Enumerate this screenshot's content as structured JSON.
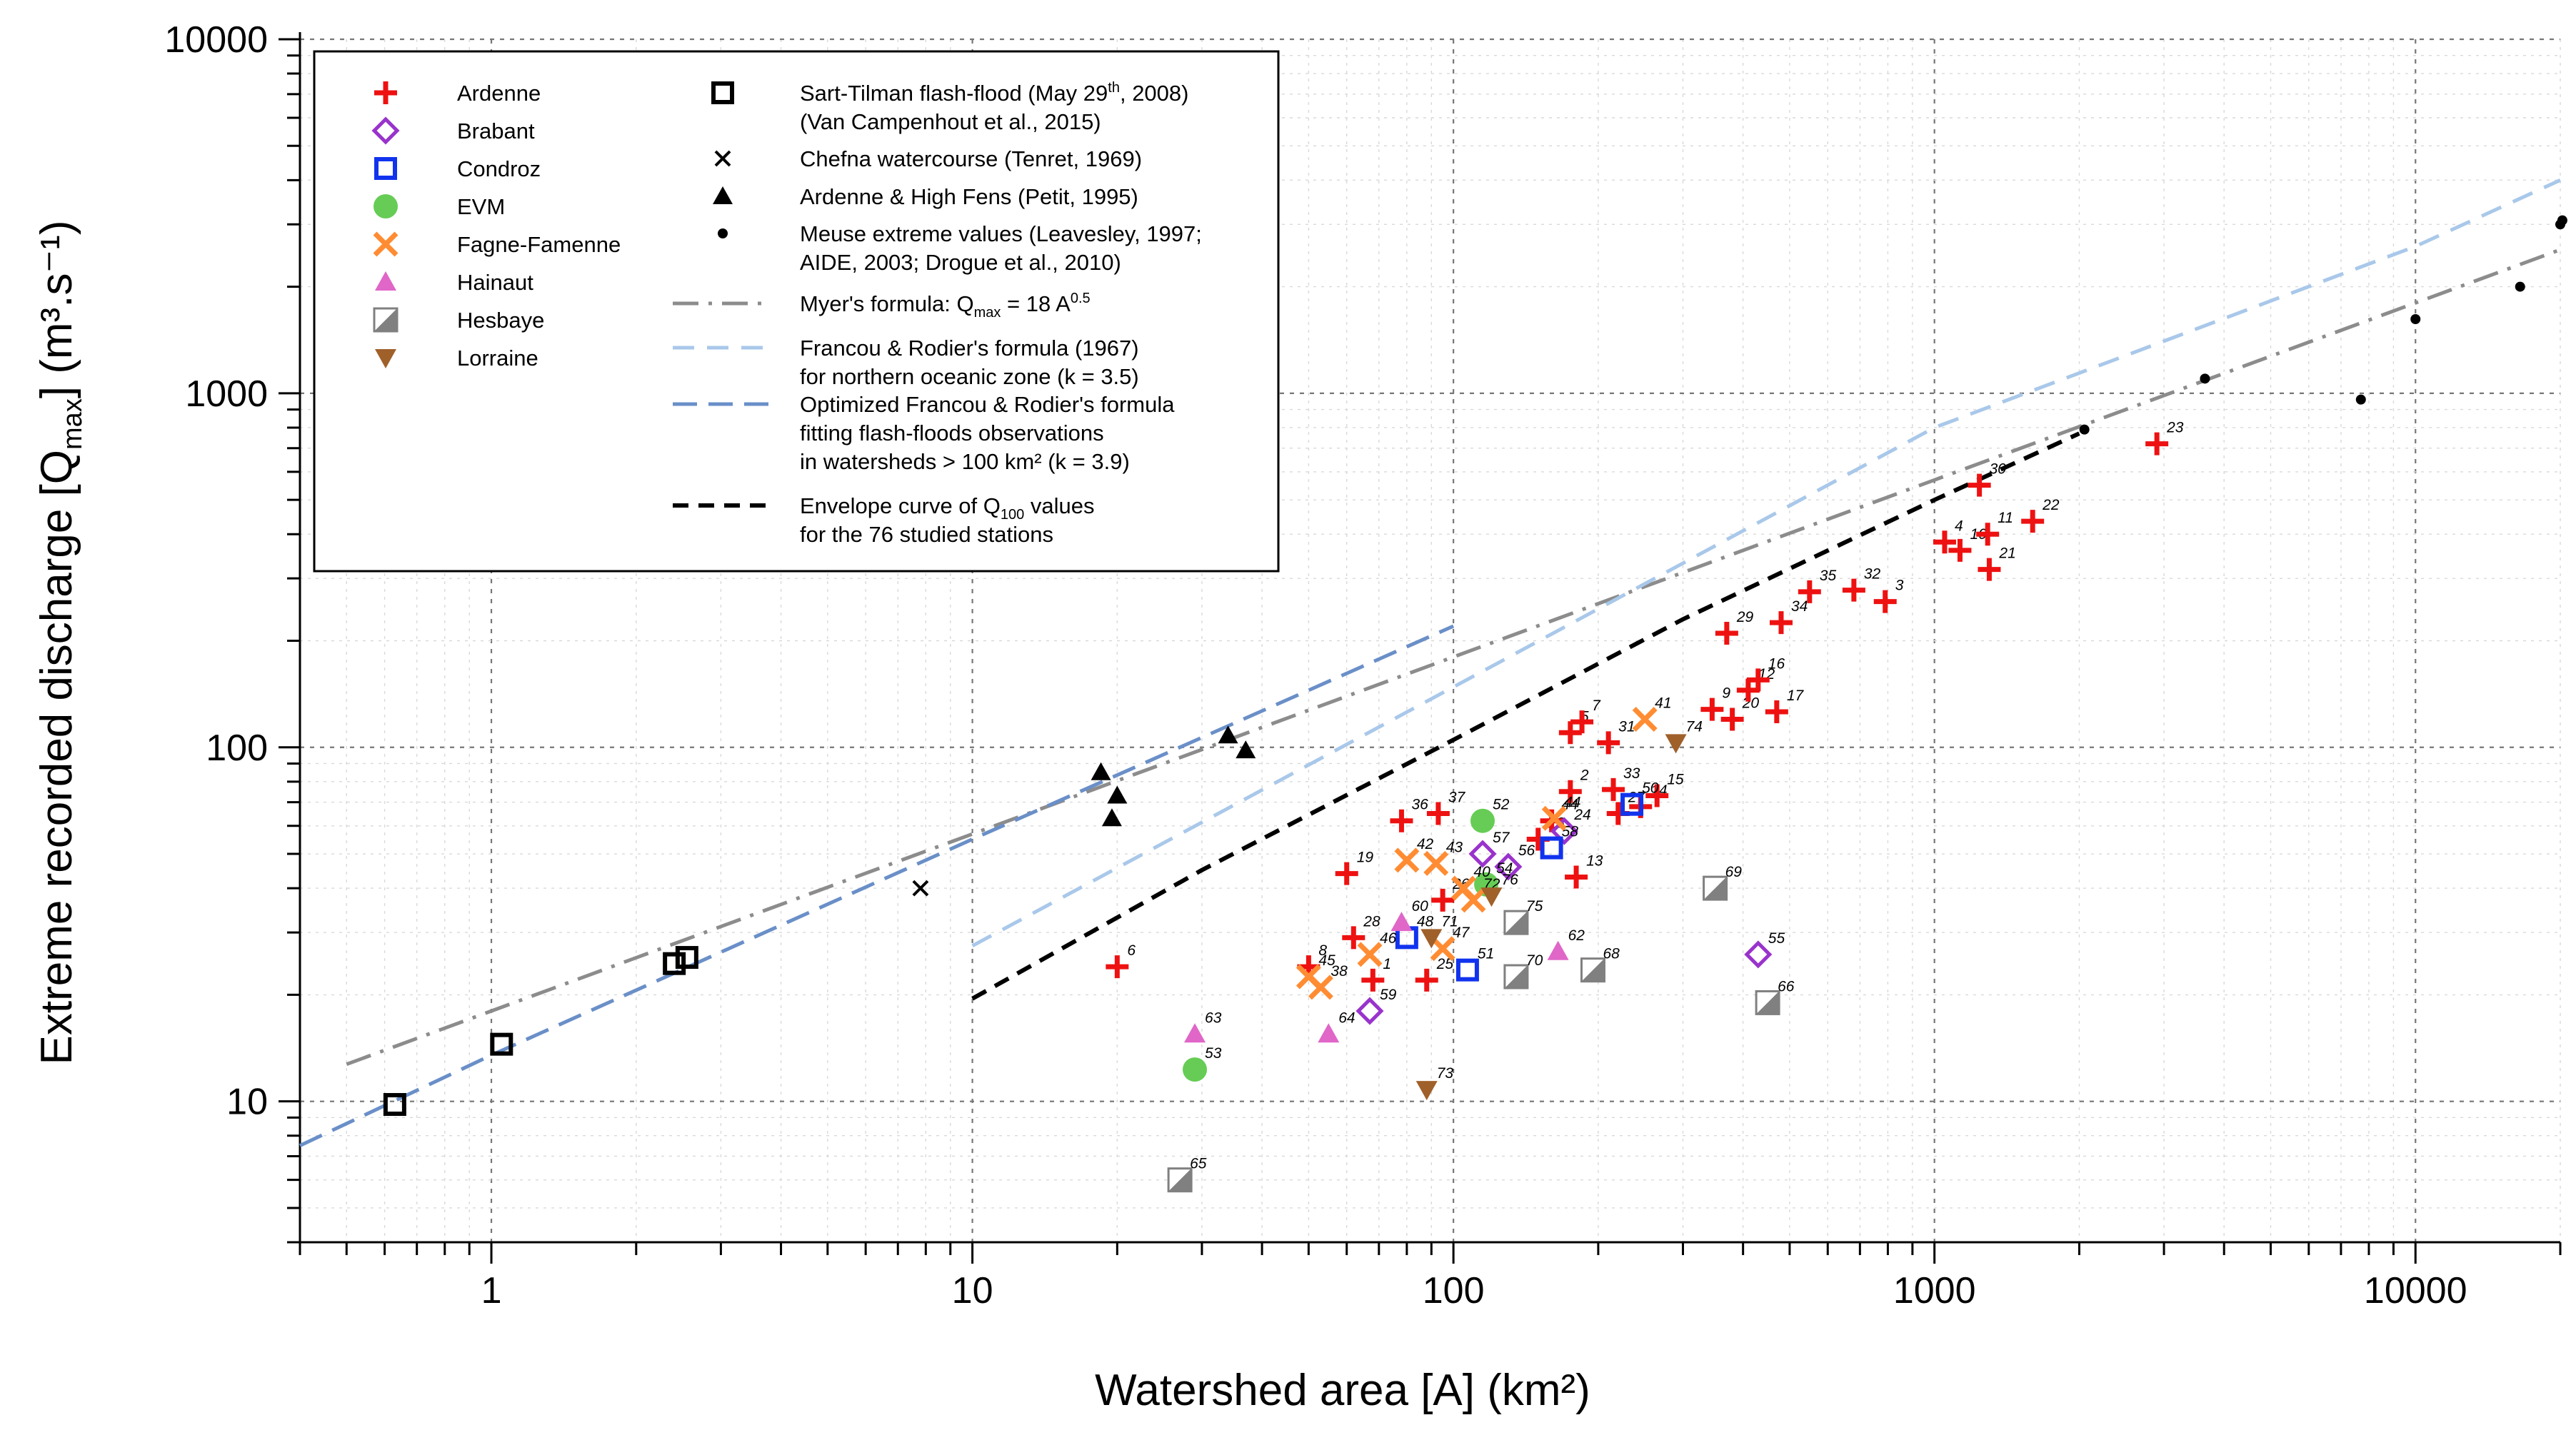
{
  "chart_data": {
    "type": "scatter",
    "xscale": "log",
    "yscale": "log",
    "xlim": [
      0.4,
      20000
    ],
    "ylim": [
      4,
      10000
    ],
    "xlabel": "Watershed area [A] (km²)",
    "ylabel_main": "Extreme recorded discharge [Q",
    "ylabel_sub": "max",
    "ylabel_tail": "] (m³.s⁻¹)",
    "x_ticks": [
      1,
      10,
      100,
      1000,
      10000
    ],
    "x_tick_labels": [
      "1",
      "10",
      "100",
      "1000",
      "10000"
    ],
    "y_ticks": [
      10,
      100,
      1000,
      10000
    ],
    "y_tick_labels": [
      "10",
      "100",
      "1000",
      "10000"
    ],
    "grid": true,
    "legend_position": "top-left",
    "colors": {
      "ardenne": "#ee1111",
      "brabant": "#9933cc",
      "condroz": "#1133ee",
      "evm": "#66cc55",
      "fagne": "#ff8c33",
      "hainaut": "#e066c8",
      "hesbaye": "#808080",
      "lorraine": "#a0602a",
      "myer": "#8c8c8c",
      "francou": "#a9c8ea",
      "optimized": "#6a8fc8"
    },
    "legend_left": [
      {
        "key": "ardenne",
        "label": "Ardenne",
        "marker": "plus"
      },
      {
        "key": "brabant",
        "label": "Brabant",
        "marker": "diamond"
      },
      {
        "key": "condroz",
        "label": "Condroz",
        "marker": "square"
      },
      {
        "key": "evm",
        "label": "EVM",
        "marker": "circle"
      },
      {
        "key": "fagne",
        "label": "Fagne-Famenne",
        "marker": "cross"
      },
      {
        "key": "hainaut",
        "label": "Hainaut",
        "marker": "triangle"
      },
      {
        "key": "hesbaye",
        "label": "Hesbaye",
        "marker": "halfsquare"
      },
      {
        "key": "lorraine",
        "label": "Lorraine",
        "marker": "triangle-down"
      }
    ],
    "legend_right": [
      {
        "key": "sart",
        "marker": "blacksquare",
        "lines": [
          "Sart-Tilman flash-flood (May 29",
          "(Van Campenhout et al., 2015)"
        ],
        "sup": "th",
        "sup_tail": ", 2008)"
      },
      {
        "key": "chefna",
        "marker": "x",
        "lines": [
          "Chefna watercourse (Tenret, 1969)"
        ]
      },
      {
        "key": "petit",
        "marker": "blacktriangle",
        "lines": [
          "Ardenne & High Fens (Petit, 1995)"
        ]
      },
      {
        "key": "meuse",
        "marker": "dot",
        "lines": [
          "Meuse extreme values (Leavesley, 1997;",
          "AIDE, 2003; Drogue et al., 2010)"
        ]
      },
      {
        "key": "myer",
        "marker": "dashdot",
        "lines": [
          "Myer's formula: Q"
        ],
        "sub": "max",
        "tail": " = 18 A",
        "sup": "0.5"
      },
      {
        "key": "francou",
        "marker": "dash-light",
        "lines": [
          "Francou & Rodier's formula (1967)",
          "for northern oceanic zone (k = 3.5)"
        ]
      },
      {
        "key": "optimized",
        "marker": "dash-blue",
        "lines": [
          "Optimized Francou & Rodier's formula",
          "fitting flash-floods observations",
          "in watersheds > 100 km² (k = 3.9)"
        ]
      },
      {
        "key": "envelope",
        "marker": "dash-black",
        "lines": [
          "Envelope curve of Q",
          "for the 76 studied stations"
        ],
        "sub": "100",
        "tail": " values"
      }
    ],
    "lines": [
      {
        "name": "Myer's formula",
        "key": "myer",
        "style": "dashdot",
        "x": [
          0.5,
          1,
          10,
          100,
          1000,
          10000,
          20000
        ],
        "y": [
          12.73,
          18,
          56.9,
          180,
          569.2,
          1800,
          2545.6
        ]
      },
      {
        "name": "Francou & Rodier (k=3.5)",
        "key": "francou",
        "style": "dash",
        "x": [
          10,
          100,
          1000,
          10000,
          20000
        ],
        "y": [
          27.5,
          148,
          800,
          2600,
          4000
        ]
      },
      {
        "name": "Optimized Francou & Rodier (k=3.9)",
        "key": "optimized",
        "style": "dash",
        "x": [
          0.4,
          1,
          10,
          100
        ],
        "y": [
          7.5,
          13.5,
          55,
          220
        ]
      },
      {
        "name": "Envelope curve Q100",
        "key": "envelope",
        "style": "dash",
        "x": [
          10,
          30,
          100,
          300,
          1000,
          2000
        ],
        "y": [
          19.5,
          45,
          105,
          230,
          500,
          770
        ]
      }
    ],
    "series": [
      {
        "name": "Ardenne",
        "key": "ardenne",
        "marker": "plus",
        "points": [
          {
            "x": 20,
            "y": 24,
            "label": "6"
          },
          {
            "x": 60,
            "y": 44,
            "label": "19"
          },
          {
            "x": 62,
            "y": 29,
            "label": "28"
          },
          {
            "x": 50,
            "y": 24,
            "label": "8"
          },
          {
            "x": 68,
            "y": 22,
            "label": "1"
          },
          {
            "x": 88,
            "y": 22,
            "label": "25"
          },
          {
            "x": 78,
            "y": 62,
            "label": "36"
          },
          {
            "x": 93,
            "y": 65,
            "label": "37"
          },
          {
            "x": 95,
            "y": 37,
            "label": "26"
          },
          {
            "x": 150,
            "y": 55,
            "label": "18"
          },
          {
            "x": 160,
            "y": 62,
            "label": "44"
          },
          {
            "x": 175,
            "y": 75,
            "label": "2"
          },
          {
            "x": 180,
            "y": 43,
            "label": "13"
          },
          {
            "x": 175,
            "y": 110,
            "label": "5"
          },
          {
            "x": 185,
            "y": 118,
            "label": "7"
          },
          {
            "x": 210,
            "y": 103,
            "label": "31"
          },
          {
            "x": 215,
            "y": 76,
            "label": "33"
          },
          {
            "x": 220,
            "y": 65,
            "label": "27"
          },
          {
            "x": 245,
            "y": 68,
            "label": "14"
          },
          {
            "x": 265,
            "y": 73,
            "label": "15"
          },
          {
            "x": 345,
            "y": 128,
            "label": "9"
          },
          {
            "x": 370,
            "y": 210,
            "label": "29"
          },
          {
            "x": 380,
            "y": 120,
            "label": "20"
          },
          {
            "x": 410,
            "y": 145,
            "label": "12"
          },
          {
            "x": 430,
            "y": 155,
            "label": "16"
          },
          {
            "x": 470,
            "y": 126,
            "label": "17"
          },
          {
            "x": 480,
            "y": 225,
            "label": "34"
          },
          {
            "x": 550,
            "y": 275,
            "label": "35"
          },
          {
            "x": 680,
            "y": 278,
            "label": "32"
          },
          {
            "x": 790,
            "y": 258,
            "label": "3"
          },
          {
            "x": 1050,
            "y": 380,
            "label": "4"
          },
          {
            "x": 1130,
            "y": 360,
            "label": "10"
          },
          {
            "x": 1240,
            "y": 550,
            "label": "30"
          },
          {
            "x": 1290,
            "y": 400,
            "label": "11"
          },
          {
            "x": 1300,
            "y": 318,
            "label": "21"
          },
          {
            "x": 1600,
            "y": 435,
            "label": "22"
          },
          {
            "x": 2900,
            "y": 720,
            "label": "23"
          }
        ]
      },
      {
        "name": "Brabant",
        "key": "brabant",
        "marker": "diamond",
        "points": [
          {
            "x": 67,
            "y": 18,
            "label": "59"
          },
          {
            "x": 115,
            "y": 50,
            "label": "57"
          },
          {
            "x": 130,
            "y": 46,
            "label": "56"
          },
          {
            "x": 170,
            "y": 58,
            "label": "24"
          },
          {
            "x": 430,
            "y": 26,
            "label": "55"
          }
        ]
      },
      {
        "name": "Condroz",
        "key": "condroz",
        "marker": "square",
        "points": [
          {
            "x": 80,
            "y": 29,
            "label": "48"
          },
          {
            "x": 107,
            "y": 23.5,
            "label": "51"
          },
          {
            "x": 160,
            "y": 52,
            "label": "58"
          },
          {
            "x": 235,
            "y": 69,
            "label": "50"
          }
        ]
      },
      {
        "name": "EVM",
        "key": "evm",
        "marker": "circle",
        "points": [
          {
            "x": 29,
            "y": 12.3,
            "label": "53"
          },
          {
            "x": 115,
            "y": 62,
            "label": "52"
          },
          {
            "x": 117,
            "y": 41,
            "label": "54"
          }
        ]
      },
      {
        "name": "Fagne-Famenne",
        "key": "fagne",
        "marker": "cross",
        "points": [
          {
            "x": 50,
            "y": 22.5,
            "label": "45"
          },
          {
            "x": 53,
            "y": 21,
            "label": "38"
          },
          {
            "x": 67,
            "y": 26,
            "label": "46"
          },
          {
            "x": 80,
            "y": 48,
            "label": "42"
          },
          {
            "x": 92,
            "y": 47,
            "label": "43"
          },
          {
            "x": 105,
            "y": 40,
            "label": "40"
          },
          {
            "x": 110,
            "y": 37,
            "label": "72"
          },
          {
            "x": 95,
            "y": 27,
            "label": "47"
          },
          {
            "x": 162,
            "y": 63,
            "label": "44b"
          },
          {
            "x": 250,
            "y": 120,
            "label": "41"
          }
        ]
      },
      {
        "name": "Hainaut",
        "key": "hainaut",
        "marker": "triangle",
        "points": [
          {
            "x": 29,
            "y": 15.5,
            "label": "63"
          },
          {
            "x": 55,
            "y": 15.5,
            "label": "64"
          },
          {
            "x": 78,
            "y": 32,
            "label": "60"
          },
          {
            "x": 165,
            "y": 26.5,
            "label": "62"
          }
        ]
      },
      {
        "name": "Hesbaye",
        "key": "hesbaye",
        "marker": "halfsquare",
        "points": [
          {
            "x": 27,
            "y": 6,
            "label": "65"
          },
          {
            "x": 135,
            "y": 32,
            "label": "75"
          },
          {
            "x": 135,
            "y": 22.5,
            "label": "70"
          },
          {
            "x": 195,
            "y": 23.5,
            "label": "68"
          },
          {
            "x": 350,
            "y": 40,
            "label": "69"
          },
          {
            "x": 450,
            "y": 19,
            "label": "66"
          }
        ]
      },
      {
        "name": "Lorraine",
        "key": "lorraine",
        "marker": "triangle-down",
        "points": [
          {
            "x": 88,
            "y": 10.8,
            "label": "73"
          },
          {
            "x": 90,
            "y": 29,
            "label": "71"
          },
          {
            "x": 120,
            "y": 38,
            "label": "76"
          },
          {
            "x": 290,
            "y": 103,
            "label": "74"
          }
        ]
      },
      {
        "name": "Sart-Tilman flash-flood",
        "key": "sart",
        "marker": "blacksquare",
        "points": [
          {
            "x": 0.63,
            "y": 9.8
          },
          {
            "x": 1.05,
            "y": 14.5
          },
          {
            "x": 2.4,
            "y": 24.5
          },
          {
            "x": 2.55,
            "y": 25.5
          }
        ]
      },
      {
        "name": "Chefna watercourse",
        "key": "chefna",
        "marker": "x",
        "points": [
          {
            "x": 7.8,
            "y": 40
          }
        ]
      },
      {
        "name": "Ardenne & High Fens",
        "key": "petit",
        "marker": "blacktriangle",
        "points": [
          {
            "x": 18.5,
            "y": 85
          },
          {
            "x": 20,
            "y": 73
          },
          {
            "x": 19.5,
            "y": 63
          },
          {
            "x": 34,
            "y": 108
          },
          {
            "x": 37,
            "y": 98
          }
        ]
      },
      {
        "name": "Meuse extreme values",
        "key": "meuse",
        "marker": "dot",
        "points": [
          {
            "x": 2050,
            "y": 790
          },
          {
            "x": 3650,
            "y": 1100
          },
          {
            "x": 7700,
            "y": 960
          },
          {
            "x": 10000,
            "y": 1620
          },
          {
            "x": 16500,
            "y": 2000
          },
          {
            "x": 20000,
            "y": 3000
          },
          {
            "x": 20200,
            "y": 3080
          }
        ]
      }
    ]
  }
}
